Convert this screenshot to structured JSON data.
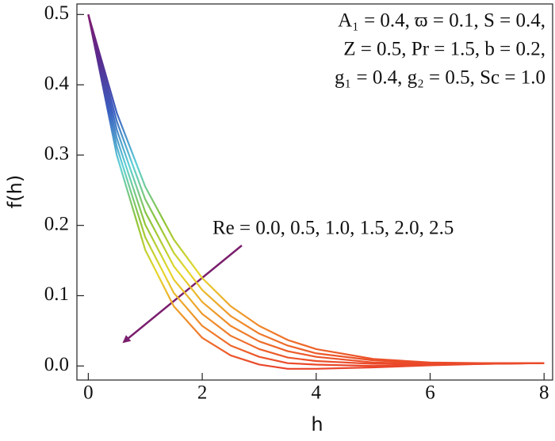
{
  "chart_data": {
    "type": "line",
    "x_label": "h",
    "y_label": "f(h)",
    "annotations": [
      "A₁ = 0.4, ϖ = 0.1, S = 0.4,",
      "Z = 0.5, Pr = 1.5, b = 0.2,",
      "g₁ = 0.4, g₂ = 0.5, Sc = 1.0",
      "Re = 0.0, 0.5, 1.0, 1.5, 2.0, 2.5"
    ],
    "x": [
      0,
      0.5,
      1,
      1.5,
      2,
      2.5,
      3,
      3.5,
      4,
      5,
      6,
      7,
      8
    ],
    "series": [
      {
        "values": [
          0.5,
          0.36,
          0.255,
          0.18,
          0.125,
          0.085,
          0.057,
          0.037,
          0.024,
          0.01,
          0.005,
          0.004,
          0.004
        ]
      },
      {
        "values": [
          0.5,
          0.348,
          0.237,
          0.161,
          0.108,
          0.071,
          0.046,
          0.029,
          0.018,
          0.008,
          0.004,
          0.004,
          0.004
        ]
      },
      {
        "values": [
          0.5,
          0.336,
          0.219,
          0.142,
          0.091,
          0.057,
          0.035,
          0.021,
          0.013,
          0.005,
          0.003,
          0.004,
          0.004
        ]
      },
      {
        "values": [
          0.5,
          0.324,
          0.201,
          0.123,
          0.074,
          0.043,
          0.024,
          0.012,
          0.007,
          0.003,
          0.003,
          0.003,
          0.004
        ]
      },
      {
        "values": [
          0.5,
          0.312,
          0.183,
          0.104,
          0.057,
          0.029,
          0.013,
          0.004,
          0.002,
          0,
          0.002,
          0.003,
          0.004
        ]
      },
      {
        "values": [
          0.5,
          0.3,
          0.165,
          0.085,
          0.04,
          0.015,
          0.002,
          -0.004,
          -0.004,
          -0.002,
          0.001,
          0.003,
          0.004
        ]
      }
    ],
    "colormap": [
      "#e8302a",
      "#f0862a",
      "#e6d82c",
      "#8cc43a",
      "#5fd0d6",
      "#3a5fc0",
      "#5a2a8e",
      "#8a1a6a"
    ],
    "xlim": [
      -0.2,
      8.15
    ],
    "ylim": [
      -0.02,
      0.515
    ],
    "xticks": [
      0,
      2,
      4,
      6,
      8
    ],
    "yticks": [
      {
        "value": 0,
        "label": "0.0"
      },
      0.1,
      0.2,
      0.3,
      0.4,
      0.5
    ]
  }
}
